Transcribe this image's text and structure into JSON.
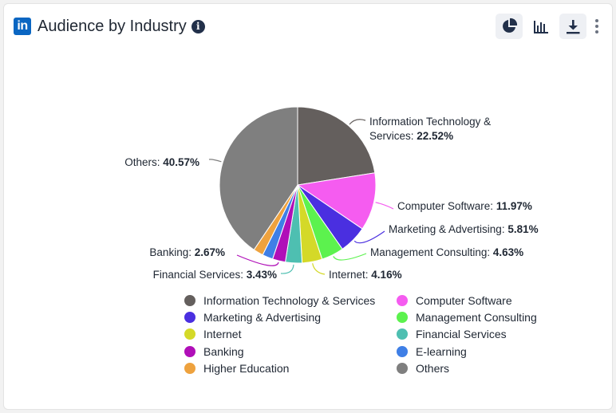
{
  "header": {
    "logo_text": "in",
    "title": "Audience by Industry",
    "info_glyph": "i",
    "icons": [
      "pie-chart-icon",
      "bar-chart-icon",
      "download-icon",
      "more-vertical-icon"
    ]
  },
  "chart_data": {
    "type": "pie",
    "title": "Audience by Industry",
    "start_angle_deg": 0,
    "direction": "clockwise",
    "legend_position": "bottom",
    "slices": [
      {
        "name": "Information Technology & Services",
        "label_lines": [
          "Information Technology &",
          "Services: "
        ],
        "value": 22.52,
        "value_text": "22.52%",
        "color": "#645f5d"
      },
      {
        "name": "Computer Software",
        "label_lines": [
          "Computer Software: "
        ],
        "value": 11.97,
        "value_text": "11.97%",
        "color": "#f55cf0"
      },
      {
        "name": "Marketing & Advertising",
        "label_lines": [
          "Marketing & Advertising: "
        ],
        "value": 5.81,
        "value_text": "5.81%",
        "color": "#4a2fe0"
      },
      {
        "name": "Management Consulting",
        "label_lines": [
          "Management Consulting: "
        ],
        "value": 4.63,
        "value_text": "4.63%",
        "color": "#5cf24e"
      },
      {
        "name": "Internet",
        "label_lines": [
          "Internet: "
        ],
        "value": 4.16,
        "value_text": "4.16%",
        "color": "#d4d928"
      },
      {
        "name": "Financial Services",
        "label_lines": [
          "Financial Services: "
        ],
        "value": 3.43,
        "value_text": "3.43%",
        "color": "#4ebfb1"
      },
      {
        "name": "Banking",
        "label_lines": [
          "Banking: "
        ],
        "value": 2.67,
        "value_text": "2.67%",
        "color": "#b00fb8"
      },
      {
        "name": "E-learning",
        "label_lines": [],
        "value": 2.19,
        "value_text": "",
        "color": "#3f7fe6"
      },
      {
        "name": "Higher Education",
        "label_lines": [],
        "value": 2.05,
        "value_text": "",
        "color": "#eea23e"
      },
      {
        "name": "Others",
        "label_lines": [
          "Others: "
        ],
        "value": 40.57,
        "value_text": "40.57%",
        "color": "#7f7f7f"
      }
    ],
    "legend": [
      {
        "name": "Information Technology & Services",
        "color": "#645f5d"
      },
      {
        "name": "Computer Software",
        "color": "#f55cf0"
      },
      {
        "name": "Marketing & Advertising",
        "color": "#4a2fe0"
      },
      {
        "name": "Management Consulting",
        "color": "#5cf24e"
      },
      {
        "name": "Internet",
        "color": "#d4d928"
      },
      {
        "name": "Financial Services",
        "color": "#4ebfb1"
      },
      {
        "name": "Banking",
        "color": "#b00fb8"
      },
      {
        "name": "E-learning",
        "color": "#3f7fe6"
      },
      {
        "name": "Higher Education",
        "color": "#eea23e"
      },
      {
        "name": "Others",
        "color": "#7f7f7f"
      }
    ]
  }
}
